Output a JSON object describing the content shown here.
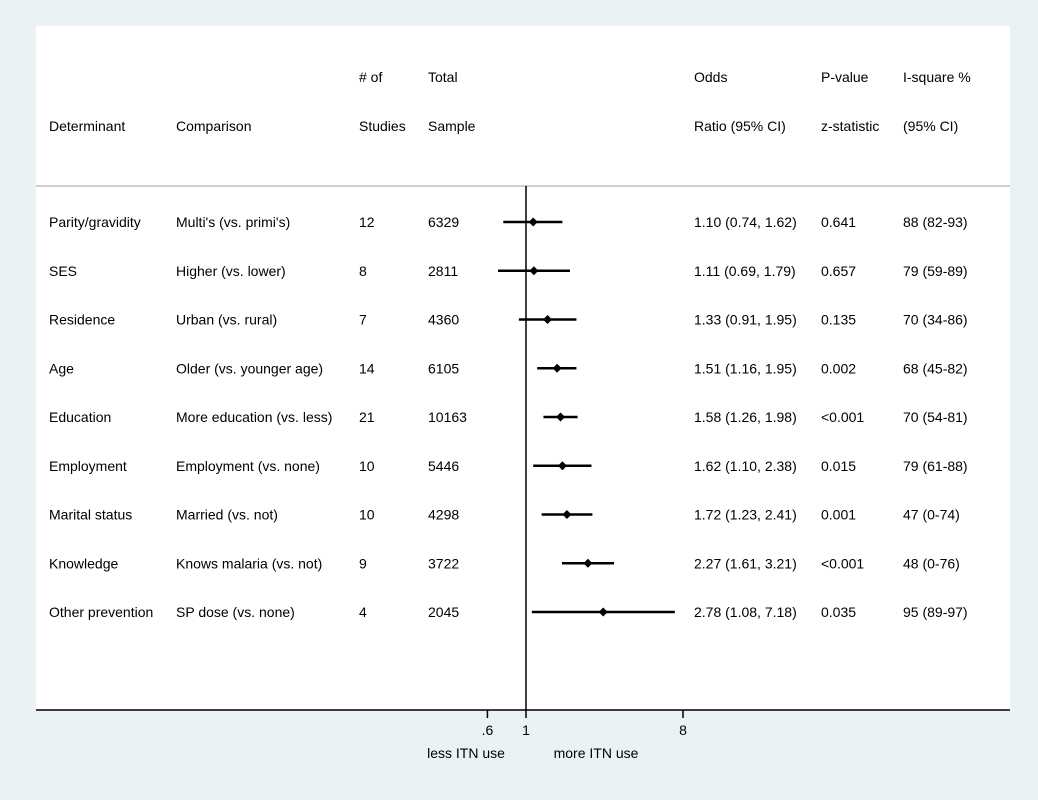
{
  "header": {
    "determinant": "Determinant",
    "comparison": "Comparison",
    "studies_line1": "# of",
    "studies_line2": "Studies",
    "sample_line1": "Total",
    "sample_line2": "Sample",
    "or_line1": "Odds",
    "or_line2": "Ratio (95% CI)",
    "p_line1": "P-value",
    "p_line2": "z-statistic",
    "i2_line1": "I-square %",
    "i2_line2": "(95% CI)"
  },
  "axis": {
    "tick_labels": [
      ".6",
      "1",
      "8"
    ],
    "tick_values": [
      0.6,
      1,
      8
    ],
    "left_label": "less ITN use",
    "right_label": "more ITN use"
  },
  "colors": {
    "background": "#eaf2f3",
    "panel": "#ffffff",
    "separator": "#bfbfbf",
    "marks": "#000000"
  },
  "chart_data": {
    "type": "forest",
    "scale": "log",
    "reference_line": 1,
    "xlim": [
      0.6,
      8
    ],
    "rows": [
      {
        "determinant": "Parity/gravidity",
        "comparison": "Multi's (vs. primi's)",
        "studies": "12",
        "sample": "6329",
        "or_text": "1.10 (0.74, 1.62)",
        "p": "0.641",
        "i2": "88 (82-93)",
        "or": 1.1,
        "lower": 0.74,
        "upper": 1.62
      },
      {
        "determinant": "SES",
        "comparison": "Higher (vs. lower)",
        "studies": "8",
        "sample": "2811",
        "or_text": "1.11 (0.69, 1.79)",
        "p": "0.657",
        "i2": "79 (59-89)",
        "or": 1.11,
        "lower": 0.69,
        "upper": 1.79
      },
      {
        "determinant": "Residence",
        "comparison": "Urban (vs. rural)",
        "studies": "7",
        "sample": "4360",
        "or_text": "1.33 (0.91, 1.95)",
        "p": "0.135",
        "i2": "70 (34-86)",
        "or": 1.33,
        "lower": 0.91,
        "upper": 1.95
      },
      {
        "determinant": "Age",
        "comparison": "Older (vs. younger age)",
        "studies": "14",
        "sample": "6105",
        "or_text": "1.51 (1.16, 1.95)",
        "p": "0.002",
        "i2": "68 (45-82)",
        "or": 1.51,
        "lower": 1.16,
        "upper": 1.95
      },
      {
        "determinant": "Education",
        "comparison": "More education (vs. less)",
        "studies": "21",
        "sample": "10163",
        "or_text": "1.58 (1.26, 1.98)",
        "p": "<0.001",
        "i2": "70 (54-81)",
        "or": 1.58,
        "lower": 1.26,
        "upper": 1.98
      },
      {
        "determinant": "Employment",
        "comparison": "Employment (vs. none)",
        "studies": "10",
        "sample": "5446",
        "or_text": "1.62 (1.10, 2.38)",
        "p": "0.015",
        "i2": "79 (61-88)",
        "or": 1.62,
        "lower": 1.1,
        "upper": 2.38
      },
      {
        "determinant": "Marital status",
        "comparison": "Married (vs. not)",
        "studies": "10",
        "sample": "4298",
        "or_text": "1.72 (1.23, 2.41)",
        "p": "0.001",
        "i2": "47 (0-74)",
        "or": 1.72,
        "lower": 1.23,
        "upper": 2.41
      },
      {
        "determinant": "Knowledge",
        "comparison": "Knows malaria (vs. not)",
        "studies": "9",
        "sample": "3722",
        "or_text": "2.27 (1.61, 3.21)",
        "p": "<0.001",
        "i2": "48 (0-76)",
        "or": 2.27,
        "lower": 1.61,
        "upper": 3.21
      },
      {
        "determinant": "Other prevention",
        "comparison": "SP dose (vs. none)",
        "studies": "4",
        "sample": "2045",
        "or_text": "2.78 (1.08, 7.18)",
        "p": "0.035",
        "i2": "95 (89-97)",
        "or": 2.78,
        "lower": 1.08,
        "upper": 7.18
      }
    ]
  }
}
